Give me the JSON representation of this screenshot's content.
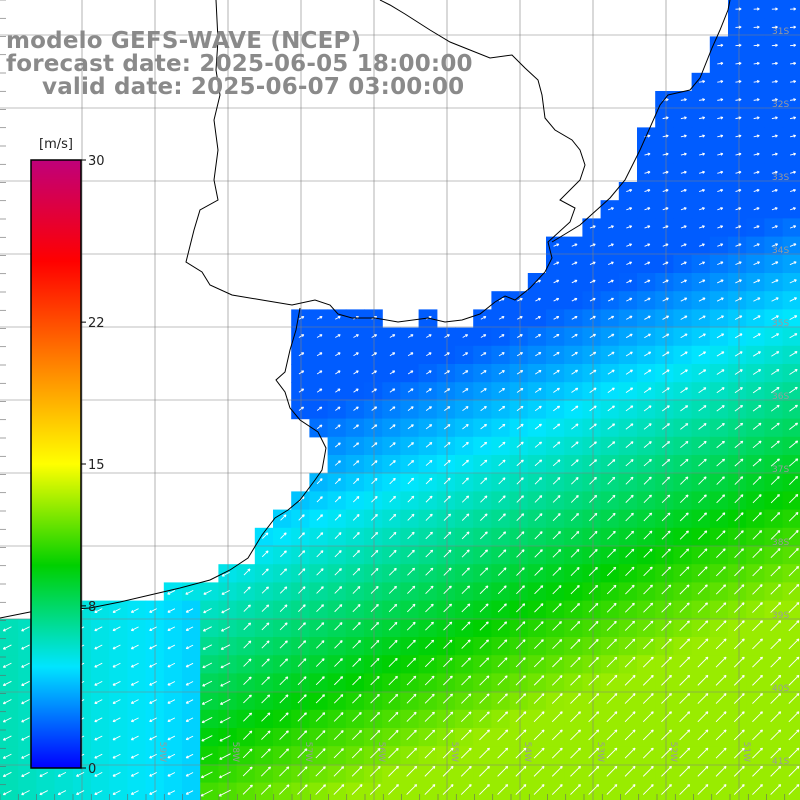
{
  "title": {
    "line1": "modelo GEFS-WAVE (NCEP)",
    "line2": "forecast date: 2025-06-05 18:00:00",
    "line3": "valid date: 2025-06-07 03:00:00"
  },
  "colorbar": {
    "unit": "[m/s]",
    "ticks": [
      "0",
      "8",
      "15",
      "22",
      "30"
    ],
    "tick_values": [
      0,
      8,
      15,
      22,
      30
    ],
    "range": [
      0,
      30
    ],
    "colors": [
      "#0000ff",
      "#00e5ff",
      "#00d000",
      "#ffff00",
      "#ff8000",
      "#ff0000",
      "#c0007a"
    ]
  },
  "latitude_labels": [
    "31S",
    "32S",
    "33S",
    "34S",
    "35S",
    "36S",
    "37S",
    "38S",
    "39S",
    "40S",
    "41S"
  ],
  "longitude_labels": [
    "59W",
    "58W",
    "57W",
    "56W",
    "55W",
    "54W",
    "53W",
    "52W",
    "51W"
  ],
  "colors": {
    "land": "#ffffff",
    "coast": "#000000",
    "grid": "#808080",
    "arrows": "#ffffff",
    "title": "#8a8a8a"
  }
}
